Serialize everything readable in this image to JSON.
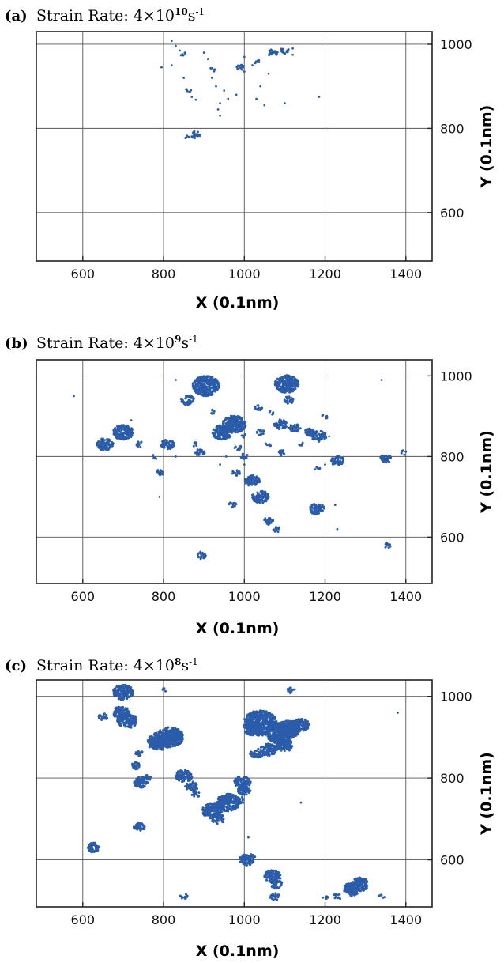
{
  "chart_data": [
    {
      "type": "scatter",
      "panel_label": "(a)",
      "title_prefix": "Strain Rate: ",
      "rate_base": "4×10",
      "rate_exponent": "10",
      "rate_unit": "s",
      "rate_unit_exp": "-1",
      "xlabel": "X (0.1nm)",
      "ylabel": "Y (0.1nm)",
      "xlim": [
        485,
        1465
      ],
      "ylim": [
        485,
        1030
      ],
      "xticks": [
        600,
        800,
        1000,
        1200,
        1400
      ],
      "yticks": [
        600,
        800,
        1000
      ],
      "grid": true,
      "color": "#2a5caa",
      "clusters": [
        [
          820,
          1008,
          1
        ],
        [
          830,
          996,
          1
        ],
        [
          795,
          945,
          1
        ],
        [
          820,
          950,
          1
        ],
        [
          840,
          985,
          1
        ],
        [
          850,
          975,
          2
        ],
        [
          850,
          920,
          1
        ],
        [
          860,
          890,
          2
        ],
        [
          870,
          875,
          1
        ],
        [
          880,
          868,
          1
        ],
        [
          880,
          785,
          4
        ],
        [
          860,
          778,
          2
        ],
        [
          900,
          980,
          1
        ],
        [
          910,
          965,
          1
        ],
        [
          920,
          940,
          2
        ],
        [
          920,
          920,
          1
        ],
        [
          930,
          900,
          1
        ],
        [
          950,
          890,
          1
        ],
        [
          940,
          860,
          1
        ],
        [
          935,
          845,
          1
        ],
        [
          940,
          830,
          1
        ],
        [
          960,
          870,
          1
        ],
        [
          980,
          880,
          1
        ],
        [
          990,
          945,
          3
        ],
        [
          1000,
          970,
          1
        ],
        [
          1000,
          935,
          1
        ],
        [
          1020,
          950,
          1
        ],
        [
          1030,
          960,
          2
        ],
        [
          1040,
          900,
          1
        ],
        [
          1030,
          870,
          1
        ],
        [
          1050,
          855,
          1
        ],
        [
          1060,
          930,
          1
        ],
        [
          1070,
          980,
          4
        ],
        [
          1100,
          985,
          3
        ],
        [
          1120,
          990,
          1
        ],
        [
          1120,
          975,
          1
        ],
        [
          1100,
          860,
          1
        ],
        [
          1185,
          875,
          1
        ]
      ]
    },
    {
      "type": "scatter",
      "panel_label": "(b)",
      "title_prefix": "Strain Rate: ",
      "rate_base": "4×10",
      "rate_exponent": "9",
      "rate_unit": "s",
      "rate_unit_exp": "-1",
      "xlabel": "X (0.1nm)",
      "ylabel": "Y (0.1nm)",
      "xlim": [
        485,
        1465
      ],
      "ylim": [
        485,
        1040
      ],
      "xticks": [
        600,
        800,
        1000,
        1200,
        1400
      ],
      "yticks": [
        600,
        800,
        1000
      ],
      "grid": true,
      "color": "#2a5caa",
      "clusters": [
        [
          578,
          950,
          1
        ],
        [
          655,
          830,
          8
        ],
        [
          700,
          860,
          10
        ],
        [
          740,
          830,
          3
        ],
        [
          720,
          890,
          1
        ],
        [
          780,
          800,
          2
        ],
        [
          790,
          760,
          3
        ],
        [
          790,
          700,
          1
        ],
        [
          810,
          830,
          6
        ],
        [
          830,
          800,
          1
        ],
        [
          830,
          990,
          1
        ],
        [
          860,
          940,
          6
        ],
        [
          890,
          810,
          4
        ],
        [
          905,
          975,
          14
        ],
        [
          880,
          830,
          2
        ],
        [
          895,
          555,
          4
        ],
        [
          930,
          980,
          2
        ],
        [
          920,
          910,
          2
        ],
        [
          945,
          860,
          10
        ],
        [
          975,
          880,
          12
        ],
        [
          985,
          820,
          3
        ],
        [
          955,
          800,
          1
        ],
        [
          1000,
          800,
          3
        ],
        [
          1000,
          850,
          2
        ],
        [
          1000,
          780,
          1
        ],
        [
          980,
          760,
          3
        ],
        [
          970,
          680,
          3
        ],
        [
          1020,
          740,
          7
        ],
        [
          1040,
          700,
          8
        ],
        [
          1060,
          640,
          4
        ],
        [
          1080,
          620,
          3
        ],
        [
          1035,
          920,
          3
        ],
        [
          1040,
          860,
          3
        ],
        [
          1060,
          830,
          2
        ],
        [
          1070,
          910,
          2
        ],
        [
          1090,
          880,
          6
        ],
        [
          1095,
          810,
          3
        ],
        [
          1105,
          980,
          12
        ],
        [
          1110,
          940,
          4
        ],
        [
          1125,
          870,
          5
        ],
        [
          1140,
          830,
          2
        ],
        [
          1160,
          860,
          5
        ],
        [
          1185,
          850,
          7
        ],
        [
          1180,
          770,
          2
        ],
        [
          1180,
          670,
          7
        ],
        [
          1200,
          900,
          2
        ],
        [
          1210,
          850,
          1
        ],
        [
          1230,
          790,
          6
        ],
        [
          1225,
          680,
          1
        ],
        [
          1230,
          620,
          1
        ],
        [
          1340,
          990,
          1
        ],
        [
          1350,
          795,
          5
        ],
        [
          1355,
          580,
          3
        ],
        [
          1395,
          810,
          2
        ],
        [
          1200,
          780,
          1
        ],
        [
          940,
          780,
          1
        ]
      ]
    },
    {
      "type": "scatter",
      "panel_label": "(c)",
      "title_prefix": "Strain Rate: ",
      "rate_base": "4×10",
      "rate_exponent": "8",
      "rate_unit": "s",
      "rate_unit_exp": "-1",
      "xlabel": "X (0.1nm)",
      "ylabel": "Y (0.1nm)",
      "xlim": [
        485,
        1465
      ],
      "ylim": [
        485,
        1040
      ],
      "xticks": [
        600,
        800,
        1000,
        1200,
        1400
      ],
      "yticks": [
        600,
        800,
        1000
      ],
      "grid": true,
      "color": "#2a5caa",
      "clusters": [
        [
          625,
          630,
          6
        ],
        [
          650,
          950,
          4
        ],
        [
          700,
          1010,
          10
        ],
        [
          695,
          960,
          8
        ],
        [
          710,
          940,
          10
        ],
        [
          740,
          860,
          3
        ],
        [
          730,
          830,
          4
        ],
        [
          745,
          790,
          7
        ],
        [
          760,
          800,
          3
        ],
        [
          740,
          680,
          5
        ],
        [
          770,
          880,
          2
        ],
        [
          790,
          890,
          12
        ],
        [
          815,
          900,
          14
        ],
        [
          800,
          1015,
          2
        ],
        [
          830,
          910,
          6
        ],
        [
          850,
          805,
          8
        ],
        [
          870,
          780,
          6
        ],
        [
          880,
          760,
          3
        ],
        [
          850,
          510,
          3
        ],
        [
          920,
          720,
          10
        ],
        [
          935,
          700,
          6
        ],
        [
          960,
          740,
          12
        ],
        [
          990,
          745,
          4
        ],
        [
          995,
          790,
          8
        ],
        [
          1000,
          770,
          6
        ],
        [
          1005,
          600,
          7
        ],
        [
          1020,
          610,
          2
        ],
        [
          1010,
          655,
          1
        ],
        [
          1040,
          935,
          18
        ],
        [
          1020,
          920,
          8
        ],
        [
          1060,
          870,
          8
        ],
        [
          1030,
          860,
          6
        ],
        [
          1070,
          560,
          8
        ],
        [
          1080,
          540,
          5
        ],
        [
          1075,
          510,
          4
        ],
        [
          1090,
          910,
          15
        ],
        [
          1110,
          920,
          12
        ],
        [
          1140,
          930,
          8
        ],
        [
          1100,
          880,
          8
        ],
        [
          1115,
          1015,
          3
        ],
        [
          1140,
          740,
          1
        ],
        [
          1200,
          510,
          2
        ],
        [
          1230,
          510,
          3
        ],
        [
          1260,
          530,
          6
        ],
        [
          1285,
          540,
          9
        ],
        [
          1270,
          520,
          4
        ],
        [
          1340,
          510,
          2
        ],
        [
          1380,
          960,
          1
        ]
      ]
    }
  ]
}
